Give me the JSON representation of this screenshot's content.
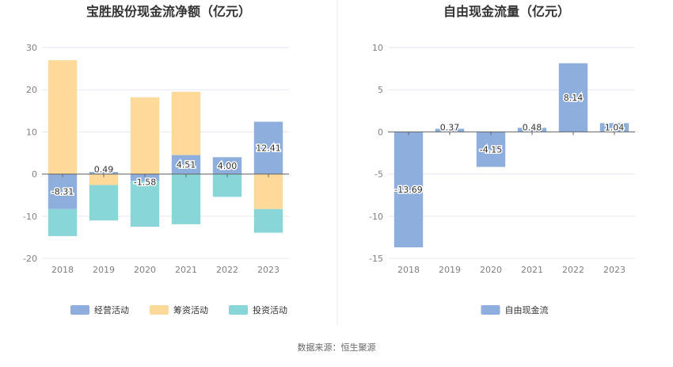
{
  "chart_data": [
    {
      "type": "bar",
      "stacked": true,
      "title": "宝胜股份现金流净额（亿元）",
      "categories": [
        "2018",
        "2019",
        "2020",
        "2021",
        "2022",
        "2023"
      ],
      "yticks": [
        "30",
        "20",
        "10",
        "0",
        "-10",
        "-20"
      ],
      "ylim": [
        -20,
        30
      ],
      "series": [
        {
          "name": "经营活动",
          "color": "#8eaedd",
          "values": [
            -8.31,
            0.49,
            -1.58,
            4.51,
            4.0,
            12.41
          ],
          "labels": [
            "-8.31",
            "0.49",
            "-1.58",
            "4.51",
            "4.00",
            "12.41"
          ]
        },
        {
          "name": "筹资活动",
          "color": "#ffd99a",
          "values": [
            27.0,
            -2.6,
            18.2,
            15.0,
            0,
            -8.3
          ],
          "labels": []
        },
        {
          "name": "投资活动",
          "color": "#88d6d8",
          "values": [
            -6.4,
            -8.4,
            -10.9,
            -11.9,
            -5.4,
            -5.6
          ],
          "labels": []
        }
      ],
      "legend_position": "bottom",
      "grid": true
    },
    {
      "type": "bar",
      "title": "自由现金流量（亿元）",
      "categories": [
        "2018",
        "2019",
        "2020",
        "2021",
        "2022",
        "2023"
      ],
      "yticks": [
        "10",
        "5",
        "0",
        "-5",
        "-10",
        "-15"
      ],
      "ylim": [
        -15,
        10
      ],
      "series": [
        {
          "name": "自由现金流",
          "color": "#8eaedd",
          "values": [
            -13.69,
            0.37,
            -4.15,
            0.48,
            8.14,
            1.04
          ],
          "labels": [
            "-13.69",
            "0.37",
            "-4.15",
            "0.48",
            "8.14",
            "1.04"
          ]
        }
      ],
      "legend_position": "bottom",
      "grid": true
    }
  ],
  "source": "数据来源：恒生聚源"
}
